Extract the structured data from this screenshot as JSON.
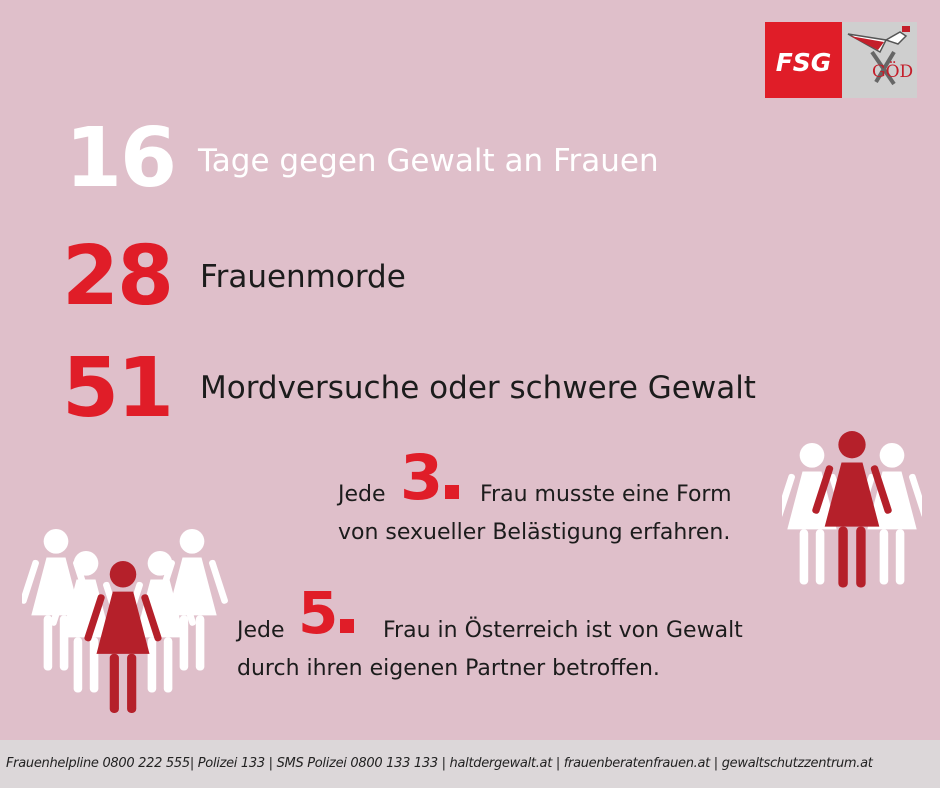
{
  "logo": {
    "fsg_text": "FSG",
    "god_text": "GÖD"
  },
  "facts": [
    {
      "number": "16",
      "text": "Tage gegen Gewalt an Frauen",
      "number_color": "#ffffff"
    },
    {
      "number": "28",
      "text": "Frauenmorde",
      "number_color": "#e01d28"
    },
    {
      "number": "51",
      "text": "Mordversuche oder schwere Gewalt",
      "number_color": "#e01d28"
    }
  ],
  "stat1": {
    "prefix": "Jede",
    "ordinal": "3",
    "line1": "Frau musste eine Form",
    "line2": "von sexueller Belästigung erfahren."
  },
  "stat2": {
    "prefix": "Jede",
    "ordinal": "5",
    "line1": "Frau in Österreich ist von Gewalt",
    "line2": "durch ihren eigenen Partner betroffen."
  },
  "footer": {
    "text": "Frauenhelpline 0800 222 555| Polizei 133 | SMS Polizei 0800 133 133 | haltdergewalt.at | frauenberatenfrauen.at | gewaltschutzzentrum.at"
  },
  "colors": {
    "background": "#dfbfca",
    "accent_red": "#e01d28",
    "figure_red": "#b5202a",
    "figure_white": "#ffffff"
  },
  "icons": [
    "woman-figure-icon",
    "fsg-logo",
    "god-logo"
  ]
}
